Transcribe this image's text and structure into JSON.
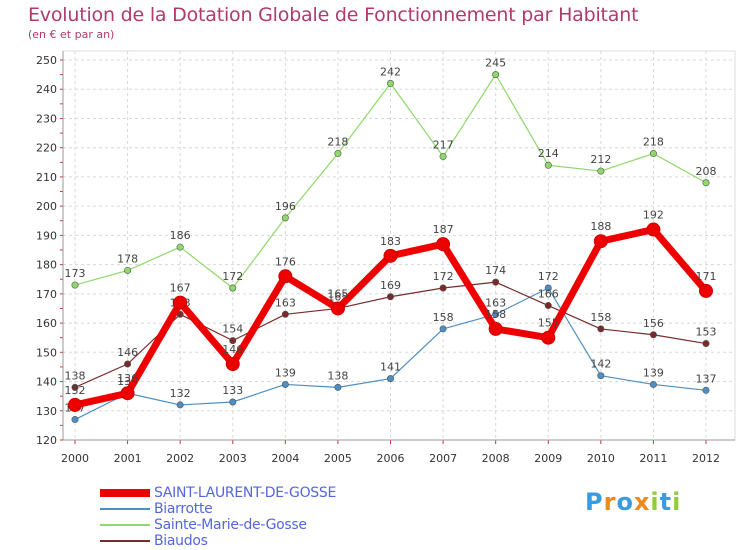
{
  "chart_data": {
    "type": "line",
    "title": "Evolution de la Dotation Globale de Fonctionnement par Habitant",
    "subtitle": "(en € et par an)",
    "x": [
      "2000",
      "2001",
      "2002",
      "2003",
      "2004",
      "2005",
      "2006",
      "2007",
      "2008",
      "2009",
      "2010",
      "2011",
      "2012"
    ],
    "ylim": [
      120,
      250
    ],
    "yticks": [
      120,
      130,
      140,
      150,
      160,
      170,
      180,
      190,
      200,
      210,
      220,
      230,
      240,
      250
    ],
    "grid": true,
    "legend_position": "bottom-left",
    "series": [
      {
        "name": "SAINT-LAURENT-DE-GOSSE",
        "color": "#ee0000",
        "values": [
          132,
          136,
          167,
          146,
          176,
          165,
          183,
          187,
          158,
          155,
          188,
          192,
          171
        ]
      },
      {
        "name": "Biarrotte",
        "color": "#4d8fc4",
        "values": [
          127,
          136,
          132,
          133,
          139,
          138,
          141,
          158,
          163,
          172,
          142,
          139,
          137
        ]
      },
      {
        "name": "Sainte-Marie-de-Gosse",
        "color": "#8fd86a",
        "values": [
          173,
          178,
          186,
          172,
          196,
          218,
          242,
          217,
          245,
          214,
          212,
          218,
          208
        ]
      },
      {
        "name": "Biaudos",
        "color": "#7a2a2a",
        "values": [
          138,
          146,
          163,
          154,
          163,
          165,
          169,
          172,
          174,
          166,
          158,
          156,
          153
        ]
      }
    ]
  },
  "brand": {
    "letters": [
      "P",
      "r",
      "o",
      "x",
      "i",
      "t",
      "i"
    ],
    "colors": [
      "#3a9be0",
      "#f08a1c",
      "#3a9be0",
      "#f08a1c",
      "#8fce3a",
      "#3a9be0",
      "#8fce3a"
    ]
  }
}
